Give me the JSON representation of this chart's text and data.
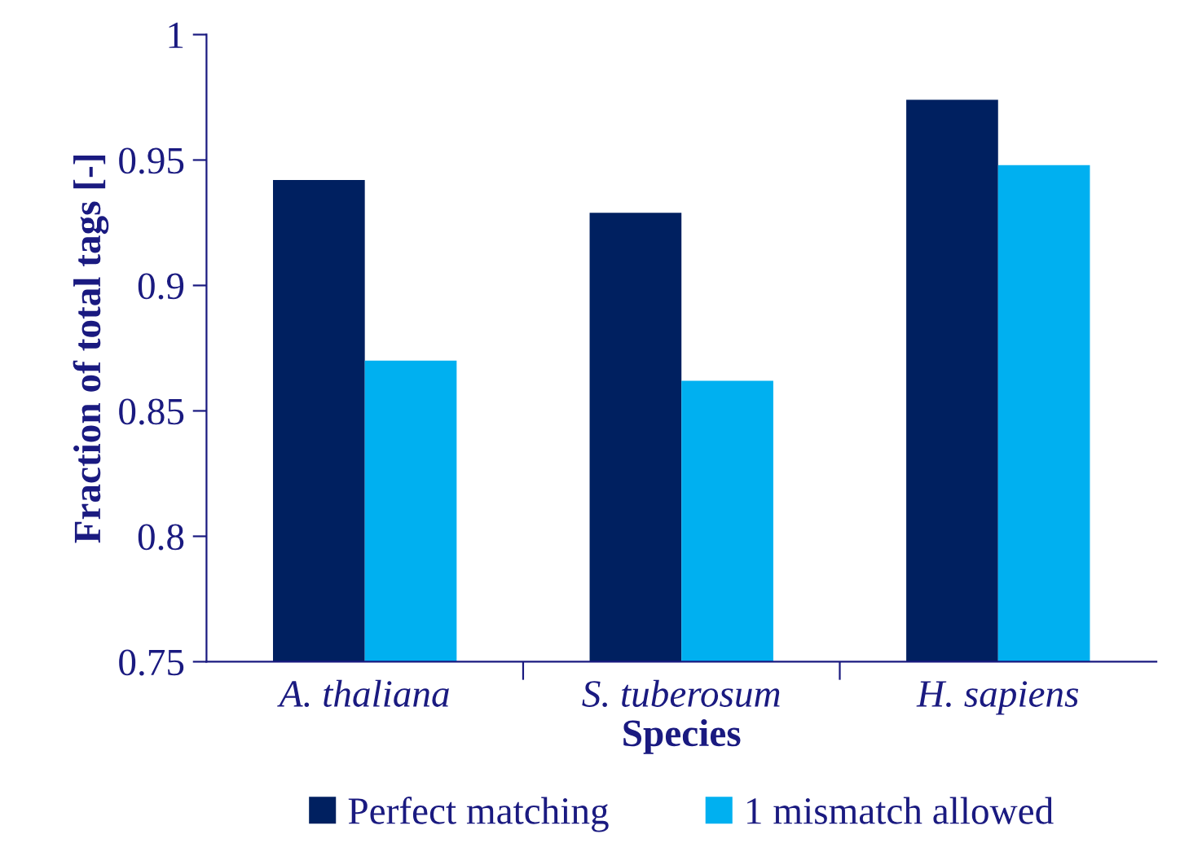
{
  "chart_data": {
    "type": "bar",
    "xlabel": "Species",
    "ylabel": "Fraction of total tags [-]",
    "categories": [
      "A. thaliana",
      "S. tuberosum",
      "H. sapiens"
    ],
    "series": [
      {
        "name": "Perfect matching",
        "color": "#002060",
        "values": [
          0.942,
          0.929,
          0.974
        ]
      },
      {
        "name": "1 mismatch allowed",
        "color": "#00b0f0",
        "values": [
          0.87,
          0.862,
          0.948
        ]
      }
    ],
    "ylim": [
      0.75,
      1
    ],
    "yticks": [
      0.75,
      0.8,
      0.85,
      0.9,
      0.95,
      1
    ],
    "grid": false,
    "legend": "bottom"
  }
}
